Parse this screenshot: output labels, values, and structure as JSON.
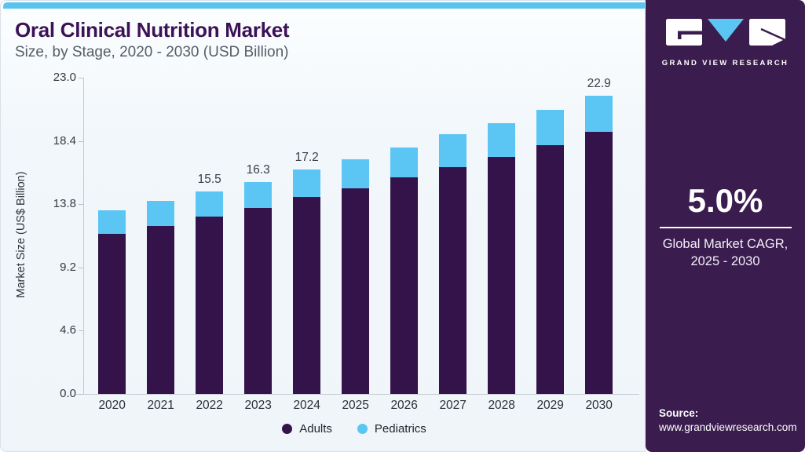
{
  "header": {
    "title": "Oral Clinical Nutrition Market",
    "subtitle": "Size, by Stage, 2020 - 2030 (USD Billion)"
  },
  "chart_data": {
    "type": "bar",
    "stacked": true,
    "title": "Oral Clinical Nutrition Market Size, by Stage, 2020 - 2030 (USD Billion)",
    "xlabel": "",
    "ylabel": "Market Size (US$ Billion)",
    "ylim": [
      0,
      23.0
    ],
    "yticks": [
      0.0,
      4.6,
      9.2,
      13.8,
      18.4,
      23.0
    ],
    "grid": false,
    "legend_position": "bottom",
    "categories": [
      "2020",
      "2021",
      "2022",
      "2023",
      "2024",
      "2025",
      "2026",
      "2027",
      "2028",
      "2029",
      "2030"
    ],
    "series": [
      {
        "name": "Adults",
        "color": "#331349",
        "values": [
          12.3,
          12.9,
          13.6,
          14.3,
          15.1,
          15.8,
          16.6,
          17.4,
          18.2,
          19.1,
          20.1
        ]
      },
      {
        "name": "Pediatrics",
        "color": "#5bc6f3",
        "values": [
          1.8,
          1.9,
          1.9,
          2.0,
          2.1,
          2.2,
          2.3,
          2.5,
          2.6,
          2.7,
          2.8
        ]
      }
    ],
    "totals": [
      14.1,
      14.8,
      15.5,
      16.3,
      17.2,
      18.0,
      18.9,
      19.9,
      20.8,
      21.8,
      22.9
    ],
    "bar_value_labels": [
      "",
      "",
      "15.5",
      "16.3",
      "17.2",
      "",
      "",
      "",
      "",
      "",
      "22.9"
    ]
  },
  "sidebar": {
    "brand": "GRAND VIEW RESEARCH",
    "cagr": {
      "value": "5.0%",
      "caption_line1": "Global Market CAGR,",
      "caption_line2": "2025 - 2030"
    },
    "source_label": "Source:",
    "source_url": "www.grandviewresearch.com"
  },
  "colors": {
    "accent_bar": "#5bc3ee",
    "adults": "#331349",
    "pediatrics": "#5bc6f3",
    "panel": "#3a1d4e",
    "title_text": "#3c1257"
  }
}
